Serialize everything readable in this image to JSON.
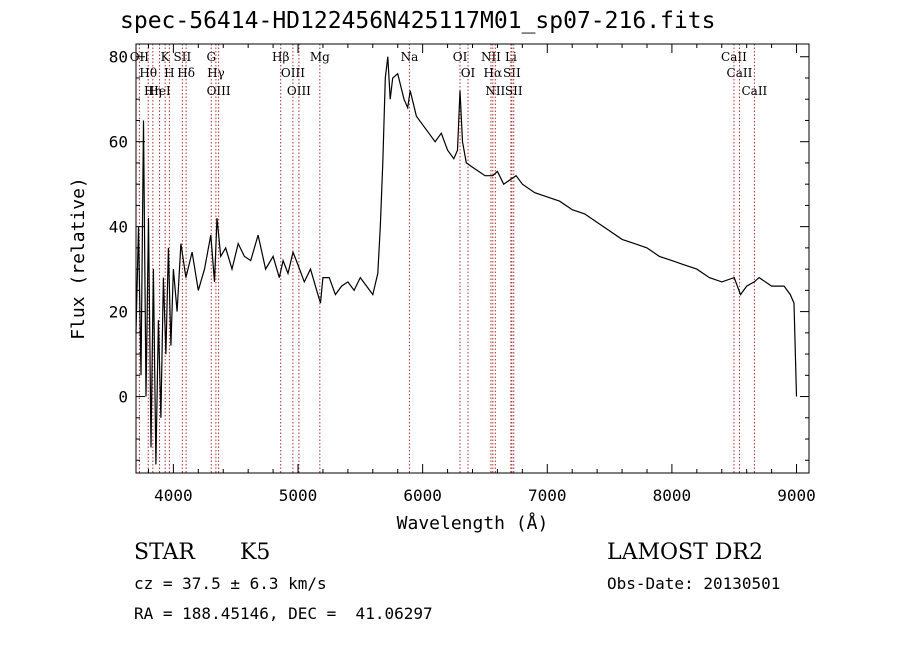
{
  "chart_data": {
    "type": "line",
    "title": "spec-56414-HD122456N425117M01_sp07-216.fits",
    "xlabel": "Wavelength (Å)",
    "ylabel": "Flux (relative)",
    "xlim": [
      3700,
      9100
    ],
    "ylim": [
      -18,
      83
    ],
    "xticks": [
      4000,
      5000,
      6000,
      7000,
      8000,
      9000
    ],
    "yticks": [
      0,
      20,
      40,
      60,
      80
    ],
    "grid": false,
    "series": [
      {
        "x": [
          3700,
          3720,
          3740,
          3760,
          3780,
          3800,
          3820,
          3840,
          3860,
          3880,
          3900,
          3920,
          3940,
          3960,
          3980,
          4000,
          4030,
          4060,
          4100,
          4150,
          4200,
          4250,
          4300,
          4330,
          4350,
          4380,
          4420,
          4470,
          4520,
          4570,
          4620,
          4680,
          4740,
          4800,
          4850,
          4880,
          4920,
          4960,
          5000,
          5050,
          5100,
          5150,
          5180,
          5200,
          5250,
          5300,
          5350,
          5400,
          5450,
          5500,
          5550,
          5600,
          5640,
          5660,
          5680,
          5700,
          5720,
          5740,
          5760,
          5800,
          5850,
          5880,
          5900,
          5950,
          6000,
          6050,
          6100,
          6150,
          6200,
          6250,
          6280,
          6300,
          6320,
          6350,
          6400,
          6450,
          6500,
          6563,
          6600,
          6650,
          6700,
          6750,
          6800,
          6900,
          7000,
          7100,
          7200,
          7300,
          7400,
          7500,
          7600,
          7700,
          7800,
          7900,
          8000,
          8100,
          8200,
          8300,
          8400,
          8500,
          8550,
          8600,
          8660,
          8700,
          8800,
          8900,
          8950,
          8980,
          9000
        ],
        "values": [
          15,
          40,
          5,
          65,
          0,
          42,
          -12,
          30,
          -16,
          18,
          -5,
          28,
          10,
          35,
          12,
          30,
          20,
          36,
          28,
          34,
          25,
          30,
          38,
          27,
          42,
          33,
          35,
          30,
          36,
          33,
          32,
          38,
          30,
          33,
          28,
          32,
          29,
          34,
          31,
          27,
          30,
          25,
          22,
          28,
          28,
          24,
          26,
          27,
          25,
          28,
          26,
          24,
          29,
          40,
          55,
          75,
          80,
          70,
          75,
          76,
          70,
          68,
          72,
          66,
          64,
          62,
          60,
          62,
          58,
          56,
          58,
          72,
          60,
          55,
          54,
          53,
          52,
          52,
          53,
          50,
          51,
          52,
          50,
          48,
          47,
          46,
          44,
          43,
          41,
          39,
          37,
          36,
          35,
          33,
          32,
          31,
          30,
          28,
          27,
          28,
          24,
          26,
          27,
          28,
          26,
          26,
          24,
          22,
          0
        ]
      }
    ],
    "lines": [
      {
        "x": 3727,
        "label": "OII"
      },
      {
        "x": 3798,
        "label": "Hθ"
      },
      {
        "x": 3835,
        "label": "Hη"
      },
      {
        "x": 3889,
        "label": "HeI"
      },
      {
        "x": 3934,
        "label": "K"
      },
      {
        "x": 3968,
        "label": "H"
      },
      {
        "x": 4072,
        "label": "SII"
      },
      {
        "x": 4102,
        "label": "Hδ"
      },
      {
        "x": 4304,
        "label": "G"
      },
      {
        "x": 4341,
        "label": "Hγ"
      },
      {
        "x": 4363,
        "label": "OIII"
      },
      {
        "x": 4861,
        "label": "Hβ"
      },
      {
        "x": 4959,
        "label": "OIII"
      },
      {
        "x": 5007,
        "label": "OIII"
      },
      {
        "x": 5175,
        "label": "Mg"
      },
      {
        "x": 5894,
        "label": "Na"
      },
      {
        "x": 6300,
        "label": "OI"
      },
      {
        "x": 6364,
        "label": "OI"
      },
      {
        "x": 6548,
        "label": "NII"
      },
      {
        "x": 6563,
        "label": "Hα"
      },
      {
        "x": 6583,
        "label": "NII"
      },
      {
        "x": 6708,
        "label": "Li"
      },
      {
        "x": 6716,
        "label": "SII"
      },
      {
        "x": 6731,
        "label": "SII"
      },
      {
        "x": 8498,
        "label": "CaII"
      },
      {
        "x": 8542,
        "label": "CaII"
      },
      {
        "x": 8662,
        "label": "CaII"
      }
    ]
  },
  "info": {
    "class": "STAR",
    "subclass": "K5",
    "survey": "LAMOST DR2",
    "cz": "cz = 37.5 ± 6.3 km/s",
    "obsdate": "Obs-Date: 20130501",
    "radec": "RA = 188.45146, DEC =  41.06297"
  },
  "colors": {
    "spectrum": "#000000",
    "line_marker": "#b03030"
  }
}
